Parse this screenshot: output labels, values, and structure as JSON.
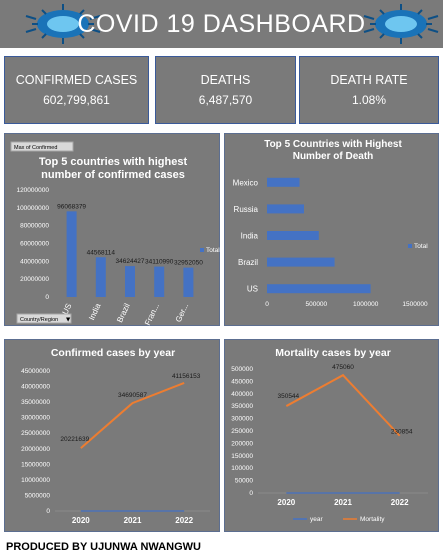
{
  "header": {
    "title": "COVID 19 DASHBOARD"
  },
  "kpis": [
    {
      "label": "CONFIRMED CASES",
      "value": "602,799,861"
    },
    {
      "label": "DEATHS",
      "value": "6,487,570"
    },
    {
      "label": "DEATH RATE",
      "value": "1.08%"
    }
  ],
  "footer": {
    "text": "PRODUCED BY UJUNWA NWANGWU"
  },
  "colors": {
    "bar": "#4472c4",
    "line_orange": "#ed7d31",
    "line_blue": "#4472c4",
    "panel": "#7a7a7a"
  },
  "chart_data": [
    {
      "type": "bar",
      "title": "Top 5 countries with highest number of confirmed cases",
      "pivot_field_button": "Max of Confirmed",
      "axis_field_button": "Country/Region",
      "categories": [
        "US",
        "India",
        "Brazil",
        "Fran...",
        "Ger..."
      ],
      "values": [
        96068379,
        44568114,
        34624427,
        34110990,
        32952050
      ],
      "value_labels": [
        "96068379",
        "44568114",
        "34624427",
        "34110990",
        "32952050"
      ],
      "ylim": [
        0,
        120000000
      ],
      "yticks": [
        0,
        20000000,
        40000000,
        60000000,
        80000000,
        100000000,
        120000000
      ],
      "ytick_labels": [
        "0",
        "20000000",
        "40000000",
        "60000000",
        "80000000",
        "100000000",
        "120000000"
      ],
      "legend": [
        "Total"
      ],
      "legend_position": "right"
    },
    {
      "type": "bar",
      "orientation": "horizontal",
      "title": "Top 5 Countries with Highest Number of  Death",
      "categories": [
        "Mexico",
        "Russia",
        "India",
        "Brazil",
        "US"
      ],
      "values": [
        330000,
        375000,
        525000,
        685000,
        1050000
      ],
      "xlim": [
        0,
        1500000
      ],
      "xticks": [
        0,
        500000,
        1000000,
        1500000
      ],
      "xtick_labels": [
        "0",
        "500000",
        "1000000",
        "1500000"
      ],
      "legend": [
        "Total"
      ],
      "legend_position": "right"
    },
    {
      "type": "line",
      "title": "Confirmed cases by year",
      "categories": [
        "2020",
        "2021",
        "2022"
      ],
      "series": [
        {
          "values": [
            20221639,
            34690587,
            41156153
          ],
          "color": "#ed7d31",
          "labels": [
            "20221639",
            "34690587",
            "41156153"
          ]
        },
        {
          "values": [
            0,
            0,
            0
          ],
          "color": "#4472c4"
        }
      ],
      "ylim": [
        0,
        45000000
      ],
      "yticks": [
        0,
        5000000,
        10000000,
        15000000,
        20000000,
        25000000,
        30000000,
        35000000,
        40000000,
        45000000
      ],
      "ytick_labels": [
        "0",
        "5000000",
        "10000000",
        "15000000",
        "20000000",
        "25000000",
        "30000000",
        "35000000",
        "40000000",
        "45000000"
      ]
    },
    {
      "type": "line",
      "title": "Mortality cases by year",
      "categories": [
        "2020",
        "2021",
        "2022"
      ],
      "series": [
        {
          "name": "year",
          "values": [
            0,
            0,
            0
          ],
          "color": "#4472c4"
        },
        {
          "name": "Mortality",
          "values": [
            350544,
            475060,
            230854
          ],
          "color": "#ed7d31",
          "labels": [
            "350544",
            "475060",
            "230854"
          ]
        }
      ],
      "ylim": [
        0,
        500000
      ],
      "yticks": [
        0,
        50000,
        100000,
        150000,
        200000,
        250000,
        300000,
        350000,
        400000,
        450000,
        500000
      ],
      "ytick_labels": [
        "0",
        "50000",
        "100000",
        "150000",
        "200000",
        "250000",
        "300000",
        "350000",
        "400000",
        "450000",
        "500000"
      ],
      "legend": [
        "year",
        "Mortality"
      ],
      "legend_position": "bottom"
    }
  ]
}
